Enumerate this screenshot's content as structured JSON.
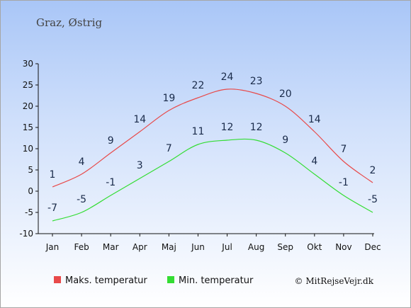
{
  "title": "Graz, Østrig",
  "credit": "© MitRejseVejr.dk",
  "chart_data": {
    "type": "line",
    "categories": [
      "Jan",
      "Feb",
      "Mar",
      "Apr",
      "Maj",
      "Jun",
      "Jul",
      "Aug",
      "Sep",
      "Okt",
      "Nov",
      "Dec"
    ],
    "ylim": [
      -10,
      30
    ],
    "yticks": [
      -10,
      -5,
      0,
      5,
      10,
      15,
      20,
      25,
      30
    ],
    "grid": false,
    "legend_position": "bottom-left",
    "series": [
      {
        "name": "Maks. temperatur",
        "color": "#e84a4a",
        "values": [
          1,
          4,
          9,
          14,
          19,
          22,
          24,
          23,
          20,
          14,
          7,
          2
        ]
      },
      {
        "name": "Min. temperatur",
        "color": "#33dd33",
        "values": [
          -7,
          -5,
          -1,
          3,
          7,
          11,
          12,
          12,
          9,
          4,
          -1,
          -5
        ]
      }
    ]
  }
}
